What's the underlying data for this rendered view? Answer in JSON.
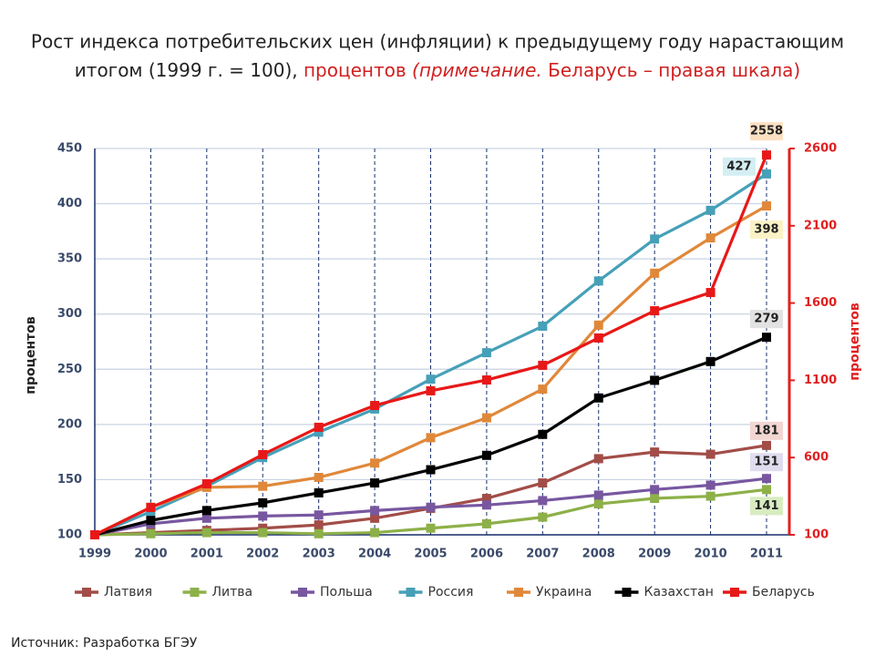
{
  "chart_data": {
    "type": "line",
    "title_parts": [
      "Рост индекса потребительских цен (инфляции) к предыдущему году нарастающим",
      "итогом (1999 г. = 100),",
      "процентов",
      "(примечание.",
      "Беларусь – правая шкала)"
    ],
    "ylabel": "процентов",
    "y2label": "процентов",
    "categories": [
      "1999",
      "2000",
      "2001",
      "2002",
      "2003",
      "2004",
      "2005",
      "2006",
      "2007",
      "2008",
      "2009",
      "2010",
      "2011"
    ],
    "ylim": [
      100,
      450
    ],
    "yticks": [
      100,
      150,
      200,
      250,
      300,
      350,
      400,
      450
    ],
    "y2lim": [
      100,
      2600
    ],
    "y2ticks": [
      100,
      600,
      1100,
      1600,
      2100,
      2600
    ],
    "grid": true,
    "series": [
      {
        "name": "Латвия",
        "color": "#a24d48",
        "values": [
          100,
          102,
          104,
          106,
          109,
          115,
          124,
          133,
          147,
          169,
          175,
          173,
          181
        ]
      },
      {
        "name": "Литва",
        "color": "#8db048",
        "values": [
          100,
          101,
          102,
          102,
          101,
          102,
          106,
          110,
          116,
          128,
          133,
          135,
          141
        ]
      },
      {
        "name": "Польша",
        "color": "#7857a0",
        "values": [
          100,
          110,
          115,
          117,
          118,
          122,
          125,
          127,
          131,
          136,
          141,
          145,
          151
        ]
      },
      {
        "name": "Россия",
        "color": "#46a0b8",
        "values": [
          100,
          121,
          144,
          170,
          193,
          214,
          241,
          265,
          289,
          330,
          368,
          394,
          427
        ]
      },
      {
        "name": "Украина",
        "color": "#e0883a",
        "values": [
          100,
          125,
          143,
          144,
          152,
          165,
          188,
          206,
          232,
          290,
          337,
          369,
          398
        ]
      },
      {
        "name": "Казахстан",
        "color": "#000000",
        "values": [
          100,
          113,
          122,
          129,
          138,
          147,
          159,
          172,
          191,
          224,
          240,
          257,
          279
        ]
      },
      {
        "name": "Беларусь",
        "color": "#e81818",
        "axis": "y2",
        "values": [
          100,
          277,
          430,
          619,
          796,
          937,
          1032,
          1102,
          1197,
          1374,
          1550,
          1668,
          2558
        ]
      }
    ]
  },
  "source": "Источник: Разработка БГЭУ"
}
